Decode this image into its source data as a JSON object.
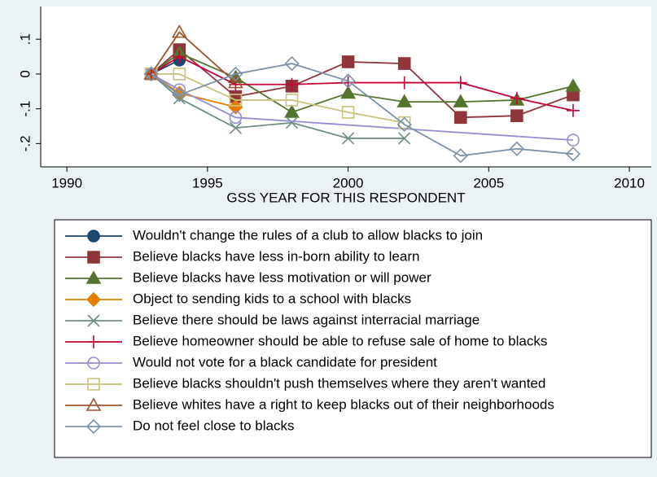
{
  "chart_data": {
    "type": "line",
    "xlabel": "GSS YEAR FOR THIS RESPONDENT",
    "xlim": [
      1989.07,
      2010.78
    ],
    "xticks": [
      1990,
      1995,
      2000,
      2005,
      2010
    ],
    "ylim": [
      -0.267,
      0.194
    ],
    "yticks": [
      {
        "value": 0.1,
        "label": ".1"
      },
      0,
      {
        "value": -0.1,
        "label": "-.1"
      },
      {
        "value": -0.2,
        "label": "-.2"
      }
    ],
    "series": [
      {
        "name": "Wouldn't change the rules of a club to allow blacks to join",
        "color": "#1a476f",
        "marker": "circle",
        "filled": true,
        "x": [
          1993,
          1994
        ],
        "values": [
          0,
          0.04
        ]
      },
      {
        "name": "Believe blacks have less in-born ability to learn",
        "color": "#90353b",
        "marker": "square",
        "filled": true,
        "x": [
          1993,
          1994,
          1996,
          1998,
          2000,
          2002,
          2004,
          2006,
          2008
        ],
        "values": [
          0,
          0.07,
          -0.065,
          -0.035,
          0.035,
          0.03,
          -0.125,
          -0.12,
          -0.06
        ]
      },
      {
        "name": "Believe blacks have less motivation or will power",
        "color": "#55752f",
        "marker": "triangle",
        "filled": true,
        "x": [
          1993,
          1994,
          1996,
          1998,
          2000,
          2002,
          2004,
          2006,
          2008
        ],
        "values": [
          0,
          0.06,
          -0.01,
          -0.11,
          -0.055,
          -0.08,
          -0.08,
          -0.075,
          -0.035
        ]
      },
      {
        "name": "Object to sending kids to a school with blacks",
        "color": "#e37e00",
        "marker": "diamond",
        "filled": true,
        "x": [
          1993,
          1994,
          1996
        ],
        "values": [
          0,
          -0.055,
          -0.095
        ]
      },
      {
        "name": "Believe there should be laws against interracial marriage",
        "color": "#6e8e84",
        "marker": "x",
        "filled": false,
        "x": [
          1993,
          1994,
          1996,
          1998,
          2000,
          2002
        ],
        "values": [
          0,
          -0.07,
          -0.155,
          -0.14,
          -0.185,
          -0.185
        ]
      },
      {
        "name": "Believe homeowner should be able to refuse sale of home to blacks",
        "color": "#c10534",
        "marker": "plus",
        "filled": false,
        "x": [
          1993,
          1994,
          1996,
          1998,
          2000,
          2002,
          2004,
          2006,
          2008
        ],
        "values": [
          0,
          0.05,
          -0.03,
          -0.03,
          -0.025,
          -0.025,
          -0.025,
          -0.07,
          -0.105
        ]
      },
      {
        "name": "Would not vote for a black candidate for president",
        "color": "#938dd2",
        "marker": "circle",
        "filled": false,
        "x": [
          1993,
          1994,
          1996,
          2008
        ],
        "values": [
          0,
          -0.045,
          -0.125,
          -0.19
        ]
      },
      {
        "name": "Believe blacks shouldn't push themselves where they aren't wanted",
        "color": "#cac27e",
        "marker": "square",
        "filled": false,
        "x": [
          1993,
          1994,
          1996,
          1998,
          2000,
          2002
        ],
        "values": [
          0,
          0,
          -0.075,
          -0.075,
          -0.11,
          -0.14
        ]
      },
      {
        "name": "Believe whites have a right to keep blacks out of their neighborhoods",
        "color": "#a0522d",
        "marker": "triangle",
        "filled": false,
        "x": [
          1993,
          1994,
          1996
        ],
        "values": [
          0,
          0.12,
          -0.025
        ]
      },
      {
        "name": "Do not feel close to blacks",
        "color": "#7b92a8",
        "marker": "diamond",
        "filled": false,
        "x": [
          1993,
          1994,
          1996,
          1998,
          2000,
          2002,
          2004,
          2006,
          2008
        ],
        "values": [
          0,
          -0.06,
          0,
          0.03,
          -0.02,
          -0.145,
          -0.235,
          -0.215,
          -0.23
        ]
      }
    ]
  }
}
